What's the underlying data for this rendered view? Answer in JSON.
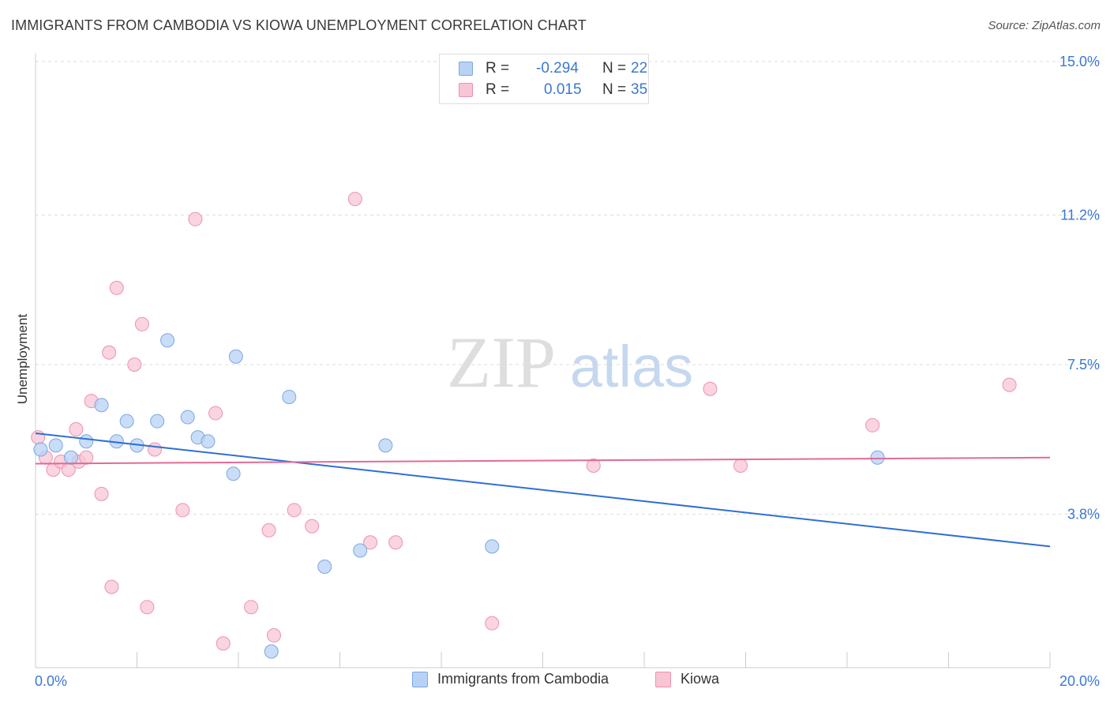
{
  "header": {
    "title": "IMMIGRANTS FROM CAMBODIA VS KIOWA UNEMPLOYMENT CORRELATION CHART",
    "source": "Source: ZipAtlas.com"
  },
  "stats": {
    "rows": [
      {
        "r_label": "R =",
        "r_value": "-0.294",
        "n_label": "N =",
        "n_value": "22"
      },
      {
        "r_label": "R =",
        "r_value": "0.015",
        "n_label": "N =",
        "n_value": "35"
      }
    ]
  },
  "watermark": {
    "part1": "ZIP",
    "part2": "atlas"
  },
  "colors": {
    "series1_fill": "#b7d2f5",
    "series1_stroke": "#7aa8e0",
    "series1_line": "#2f6fd4",
    "series2_fill": "#f8c5d5",
    "series2_stroke": "#eb93b0",
    "series2_line": "#e26b95",
    "axis_text": "#3a78d4",
    "grid": "#dddddd"
  },
  "chart_data": {
    "type": "scatter",
    "title": "IMMIGRANTS FROM CAMBODIA VS KIOWA UNEMPLOYMENT CORRELATION CHART",
    "xlabel": "",
    "ylabel": "Unemployment",
    "xlim": [
      0,
      20
    ],
    "ylim": [
      0,
      15
    ],
    "x_tick_labels": [
      "0.0%",
      "20.0%"
    ],
    "y_ticks": [
      3.8,
      7.5,
      11.2,
      15.0
    ],
    "y_tick_labels": [
      "3.8%",
      "7.5%",
      "11.2%",
      "15.0%"
    ],
    "grid": true,
    "legend_position": "bottom",
    "series": [
      {
        "name": "Immigrants from Cambodia",
        "r": -0.294,
        "n": 22,
        "trend": {
          "x": [
            0,
            20
          ],
          "y": [
            5.8,
            3.0
          ]
        },
        "points": [
          {
            "x": 0.1,
            "y": 5.4
          },
          {
            "x": 0.4,
            "y": 5.5
          },
          {
            "x": 0.7,
            "y": 5.2
          },
          {
            "x": 1.0,
            "y": 5.6
          },
          {
            "x": 1.3,
            "y": 6.5
          },
          {
            "x": 1.6,
            "y": 5.6
          },
          {
            "x": 1.8,
            "y": 6.1
          },
          {
            "x": 2.0,
            "y": 5.5
          },
          {
            "x": 2.4,
            "y": 6.1
          },
          {
            "x": 2.6,
            "y": 8.1
          },
          {
            "x": 3.0,
            "y": 6.2
          },
          {
            "x": 3.2,
            "y": 5.7
          },
          {
            "x": 3.4,
            "y": 5.6
          },
          {
            "x": 3.9,
            "y": 4.8
          },
          {
            "x": 3.95,
            "y": 7.7
          },
          {
            "x": 4.65,
            "y": 0.4
          },
          {
            "x": 5.0,
            "y": 6.7
          },
          {
            "x": 5.7,
            "y": 2.5
          },
          {
            "x": 6.4,
            "y": 2.9
          },
          {
            "x": 6.9,
            "y": 5.5
          },
          {
            "x": 9.0,
            "y": 3.0
          },
          {
            "x": 16.6,
            "y": 5.2
          }
        ]
      },
      {
        "name": "Kiowa",
        "r": 0.015,
        "n": 35,
        "trend": {
          "x": [
            0,
            20
          ],
          "y": [
            5.05,
            5.2
          ]
        },
        "points": [
          {
            "x": 0.05,
            "y": 5.7
          },
          {
            "x": 0.2,
            "y": 5.2
          },
          {
            "x": 0.35,
            "y": 4.9
          },
          {
            "x": 0.5,
            "y": 5.1
          },
          {
            "x": 0.65,
            "y": 4.9
          },
          {
            "x": 0.8,
            "y": 5.9
          },
          {
            "x": 0.85,
            "y": 5.1
          },
          {
            "x": 1.0,
            "y": 5.2
          },
          {
            "x": 1.1,
            "y": 6.6
          },
          {
            "x": 1.3,
            "y": 4.3
          },
          {
            "x": 1.45,
            "y": 7.8
          },
          {
            "x": 1.5,
            "y": 2.0
          },
          {
            "x": 1.6,
            "y": 9.4
          },
          {
            "x": 1.95,
            "y": 7.5
          },
          {
            "x": 2.1,
            "y": 8.5
          },
          {
            "x": 2.2,
            "y": 1.5
          },
          {
            "x": 2.35,
            "y": 5.4
          },
          {
            "x": 2.9,
            "y": 3.9
          },
          {
            "x": 3.15,
            "y": 11.1
          },
          {
            "x": 3.7,
            "y": 0.6
          },
          {
            "x": 3.55,
            "y": 6.3
          },
          {
            "x": 4.25,
            "y": 1.5
          },
          {
            "x": 4.6,
            "y": 3.4
          },
          {
            "x": 4.7,
            "y": 0.8
          },
          {
            "x": 5.1,
            "y": 3.9
          },
          {
            "x": 5.45,
            "y": 3.5
          },
          {
            "x": 6.3,
            "y": 11.6
          },
          {
            "x": 6.6,
            "y": 3.1
          },
          {
            "x": 7.1,
            "y": 3.1
          },
          {
            "x": 9.0,
            "y": 1.1
          },
          {
            "x": 11.0,
            "y": 5.0
          },
          {
            "x": 13.3,
            "y": 6.9
          },
          {
            "x": 13.9,
            "y": 5.0
          },
          {
            "x": 16.5,
            "y": 6.0
          },
          {
            "x": 19.2,
            "y": 7.0
          }
        ]
      }
    ]
  }
}
